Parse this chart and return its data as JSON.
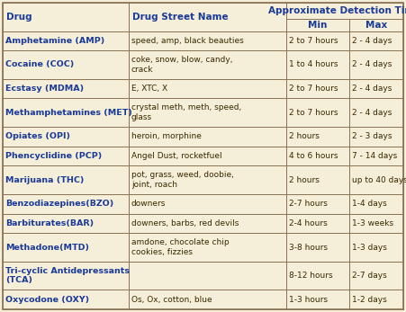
{
  "bg_color": "#f5eed8",
  "border_color": "#8B7355",
  "text_color": "#3a2800",
  "bold_color": "#1a3a99",
  "rows": [
    {
      "drug": "Amphetamine (AMP)",
      "street": "speed, amp, black beauties",
      "min": "2 to 7 hours",
      "max": "2 - 4 days"
    },
    {
      "drug": "Cocaine (COC)",
      "street": "coke, snow, blow, candy,\ncrack",
      "min": "1 to 4 hours",
      "max": "2 - 4 days"
    },
    {
      "drug": "Ecstasy (MDMA)",
      "street": "E, XTC, X",
      "min": "2 to 7 hours",
      "max": "2 - 4 days"
    },
    {
      "drug": "Methamphetamines (MET)",
      "street": "crystal meth, meth, speed,\nglass",
      "min": "2 to 7 hours",
      "max": "2 - 4 days"
    },
    {
      "drug": "Opiates (OPI)",
      "street": "heroin, morphine",
      "min": "2 hours",
      "max": "2 - 3 days"
    },
    {
      "drug": "Phencyclidine (PCP)",
      "street": "Angel Dust, rocketfuel",
      "min": "4 to 6 hours",
      "max": "7 - 14 days"
    },
    {
      "drug": "Marijuana (THC)",
      "street": "pot, grass, weed, doobie,\njoint, roach",
      "min": "2 hours",
      "max": "up to 40 days"
    },
    {
      "drug": "Benzodiazepines(BZO)",
      "street": "downers",
      "min": "2-7 hours",
      "max": "1-4 days"
    },
    {
      "drug": "Barbiturates(BAR)",
      "street": "downers, barbs, red devils",
      "min": "2-4 hours",
      "max": "1-3 weeks"
    },
    {
      "drug": "Methadone(MTD)",
      "street": "amdone, chocolate chip\ncookies, fizzies",
      "min": "3-8 hours",
      "max": "1-3 days"
    },
    {
      "drug": "Tri-cyclic Antidepressants\n(TCA)",
      "street": "",
      "min": "8-12 hours",
      "max": "2-7 days"
    },
    {
      "drug": "Oxycodone (OXY)",
      "street": "Os, Ox, cotton, blue",
      "min": "1-3 hours",
      "max": "1-2 days"
    }
  ],
  "figsize": [
    4.51,
    3.47
  ],
  "dpi": 100
}
